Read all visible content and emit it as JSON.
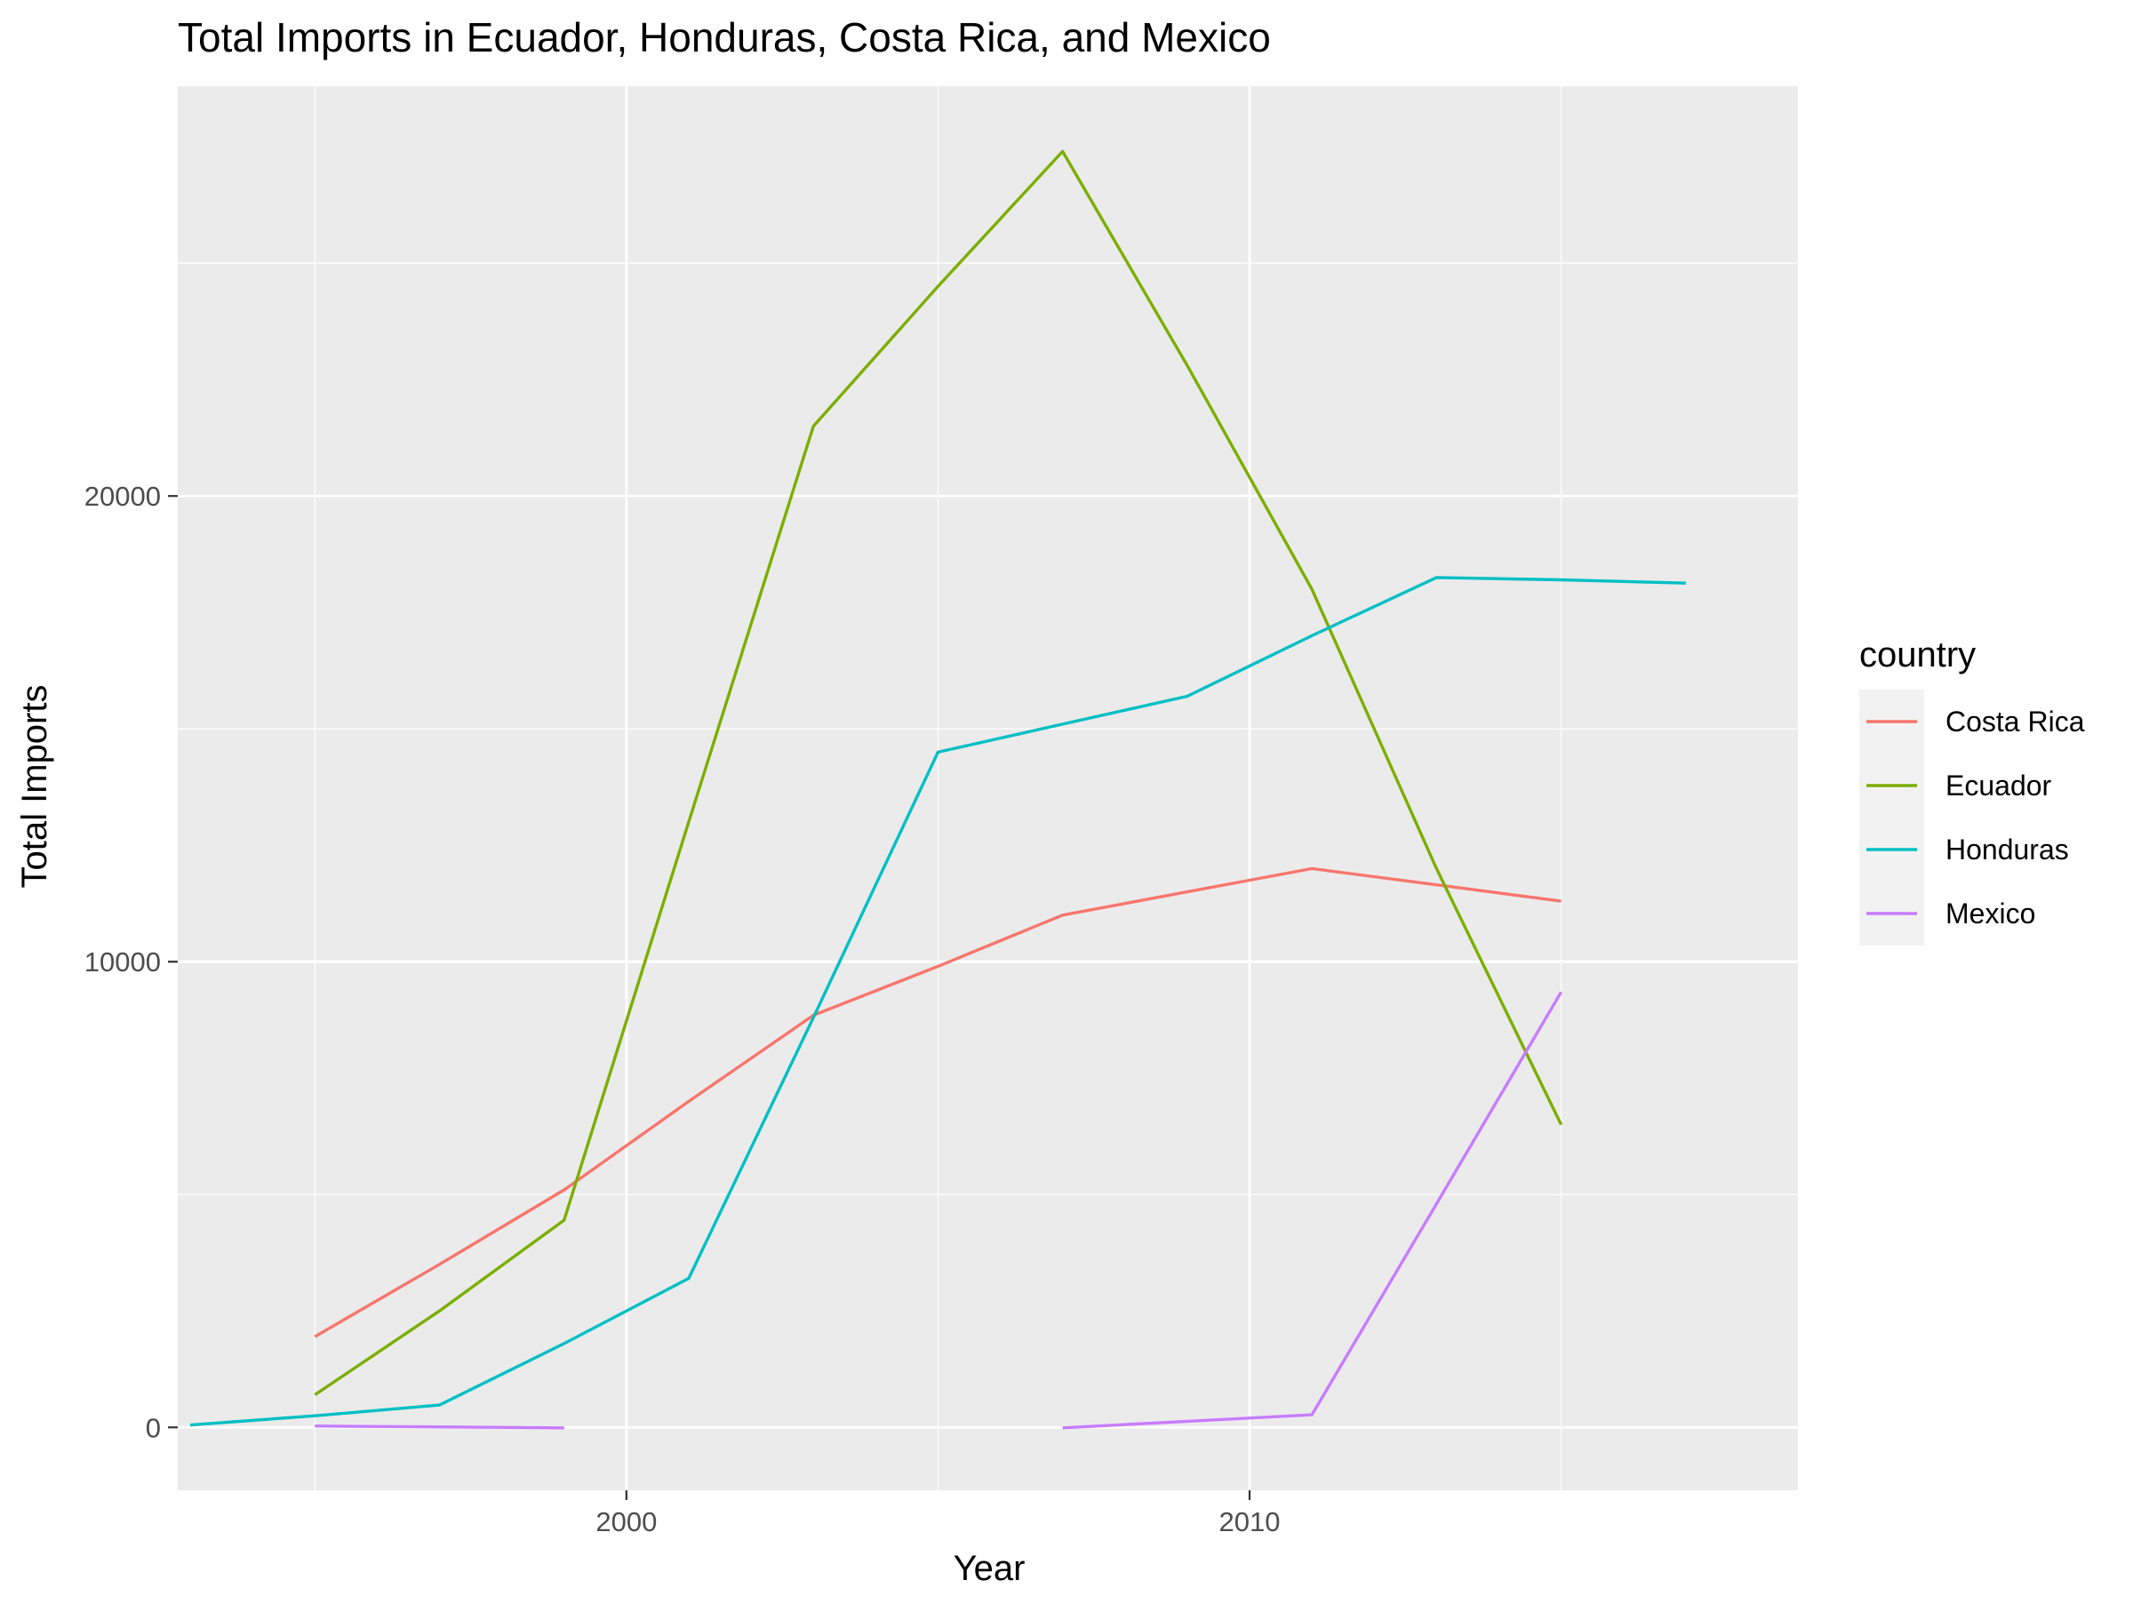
{
  "chart_data": {
    "type": "line",
    "title": "Total Imports in Ecuador, Honduras, Costa Rica, and Mexico",
    "xlabel": "Year",
    "ylabel": "Total Imports",
    "xlim": [
      1992.8,
      2018.8
    ],
    "ylim": [
      -1350,
      28800
    ],
    "x_ticks": [
      2000,
      2010
    ],
    "x_tick_labels": [
      "2000",
      "2010"
    ],
    "y_ticks": [
      0,
      10000,
      20000
    ],
    "y_tick_labels": [
      "0",
      "10000",
      "20000"
    ],
    "x_minor_ticks": [
      1995,
      2005,
      2015
    ],
    "y_minor_ticks": [
      5000,
      15000,
      25000
    ],
    "grid": true,
    "legend": {
      "title": "country",
      "position": "right"
    },
    "series": [
      {
        "name": "Costa Rica",
        "color": "#F8766D",
        "segments": [
          [
            [
              1995,
              1950
            ],
            [
              1997,
              3500
            ],
            [
              1999,
              5100
            ],
            [
              2001,
              7000
            ],
            [
              2003,
              8850
            ],
            [
              2005,
              9900
            ],
            [
              2007,
              11000
            ],
            [
              2009,
              11500
            ],
            [
              2011,
              12000
            ],
            [
              2013,
              11650
            ],
            [
              2015,
              11300
            ]
          ]
        ]
      },
      {
        "name": "Ecuador",
        "color": "#7CAE00",
        "segments": [
          [
            [
              1995,
              700
            ],
            [
              1997,
              2500
            ],
            [
              1999,
              4450
            ],
            [
              2001,
              13000
            ],
            [
              2003,
              21500
            ],
            [
              2005,
              24500
            ],
            [
              2007,
              27400
            ],
            [
              2009,
              22800
            ],
            [
              2011,
              18000
            ],
            [
              2013,
              12000
            ],
            [
              2015,
              6500
            ]
          ]
        ]
      },
      {
        "name": "Honduras",
        "color": "#00BFC4",
        "segments": [
          [
            [
              1993,
              50
            ],
            [
              1995,
              250
            ],
            [
              1997,
              480
            ],
            [
              1999,
              1800
            ],
            [
              2001,
              3200
            ],
            [
              2003,
              8800
            ],
            [
              2005,
              14500
            ],
            [
              2007,
              15100
            ],
            [
              2009,
              15700
            ],
            [
              2011,
              17000
            ],
            [
              2013,
              18250
            ],
            [
              2015,
              18200
            ],
            [
              2017,
              18130
            ]
          ]
        ]
      },
      {
        "name": "Mexico",
        "color": "#C77CFF",
        "segments": [
          [
            [
              1995,
              30
            ],
            [
              1997,
              10
            ],
            [
              1999,
              -10
            ]
          ],
          [
            [
              2007,
              -10
            ],
            [
              2009,
              130
            ],
            [
              2011,
              270
            ],
            [
              2013,
              4800
            ],
            [
              2015,
              9350
            ]
          ]
        ]
      }
    ]
  }
}
